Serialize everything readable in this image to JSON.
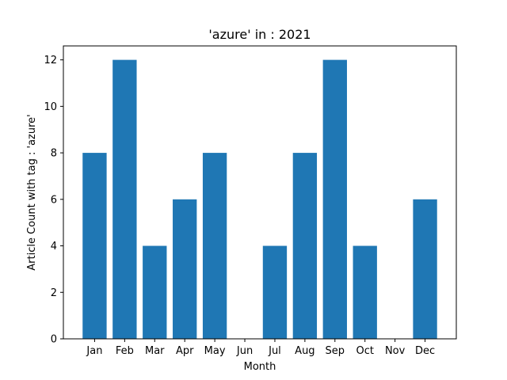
{
  "chart_data": {
    "type": "bar",
    "title": "'azure' in : 2021",
    "xlabel": "Month",
    "ylabel": "Article Count with tag : 'azure'",
    "categories": [
      "Jan",
      "Feb",
      "Mar",
      "Apr",
      "May",
      "Jun",
      "Jul",
      "Aug",
      "Sep",
      "Oct",
      "Nov",
      "Dec"
    ],
    "values": [
      8,
      12,
      4,
      6,
      8,
      0,
      4,
      8,
      12,
      4,
      0,
      6
    ],
    "ylim": [
      0,
      12.6
    ],
    "yticks": [
      0,
      2,
      4,
      6,
      8,
      10,
      12
    ],
    "grid": false,
    "legend": "none",
    "bar_color": "#1f77b4"
  }
}
